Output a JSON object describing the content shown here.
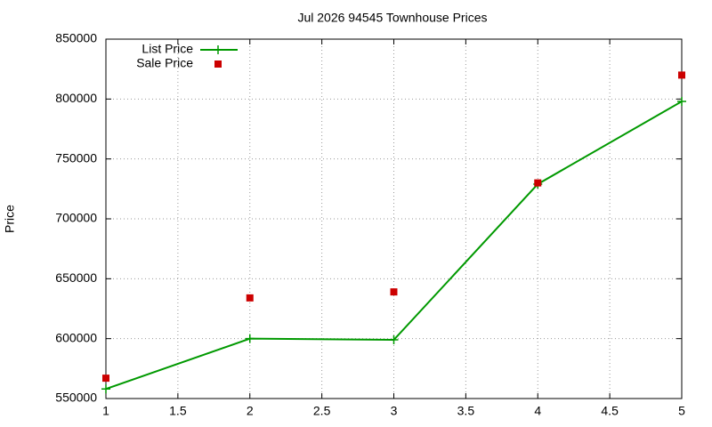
{
  "chart_data": {
    "type": "line",
    "title": "Jul 2026 94545 Townhouse Prices",
    "y_label": "Price",
    "x": [
      1,
      2,
      3,
      4,
      5
    ],
    "series": [
      {
        "name": "List Price",
        "color": "#009900",
        "style": "linespoints",
        "values": [
          558000,
          600000,
          599000,
          729000,
          798000
        ]
      },
      {
        "name": "Sale Price",
        "color": "#cc0000",
        "style": "points",
        "values": [
          567000,
          634000,
          639000,
          730000,
          820000
        ]
      }
    ],
    "xlim": [
      1,
      5
    ],
    "xticks": [
      1,
      1.5,
      2,
      2.5,
      3,
      3.5,
      4,
      4.5,
      5
    ],
    "ylim": [
      550000,
      850000
    ],
    "yticks": [
      550000,
      600000,
      650000,
      700000,
      750000,
      800000,
      850000
    ],
    "grid": true,
    "legend": "top-left"
  }
}
